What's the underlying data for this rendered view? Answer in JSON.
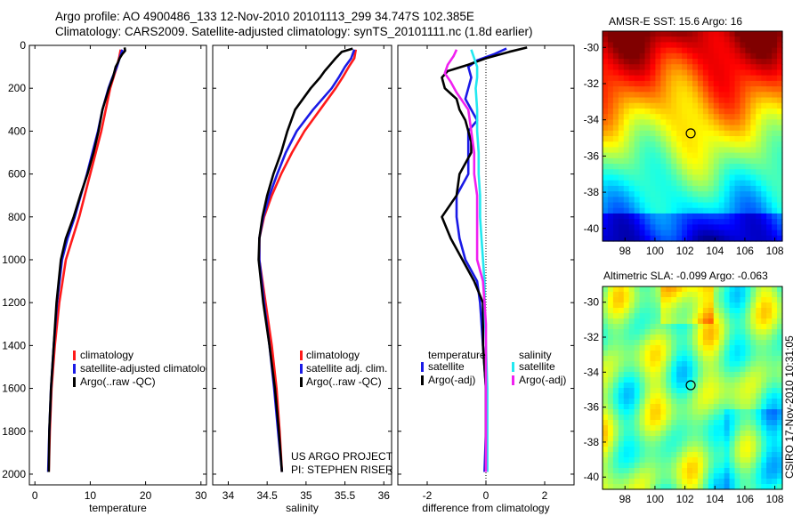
{
  "header": {
    "line1": "Argo profile: AO 4900486_133 12-Nov-2010 20101113_299 34.747S 102.385E",
    "line2": "Climatology: CARS2009. Satellite-adjusted climatology: synTS_20101111.nc (1.8d earlier)"
  },
  "side_label": "CSIRO 17-Nov-2010 10:31:05",
  "colors": {
    "red": "#ff1a1a",
    "blue": "#1a1ae6",
    "black": "#000000",
    "cyan": "#22e8f0",
    "magenta": "#f020f0"
  },
  "chart_data": [
    {
      "type": "line",
      "xlabel": "temperature",
      "xlim": [
        -1,
        31
      ],
      "ylim": [
        0,
        2050
      ],
      "y_reversed": true,
      "xticks": [
        "0",
        "10",
        "20",
        "30"
      ],
      "yticks": [
        "0",
        "200",
        "400",
        "600",
        "800",
        "1000",
        "1200",
        "1400",
        "1600",
        "1800",
        "2000"
      ],
      "legend": [
        "climatology",
        "satellite-adjusted climatology",
        "Argo(..raw -QC)"
      ],
      "series": [
        {
          "name": "climatology",
          "color": "red",
          "depth": [
            20,
            60,
            100,
            150,
            200,
            300,
            400,
            500,
            600,
            700,
            800,
            900,
            1000,
            1200,
            1400,
            1600,
            1800,
            1990
          ],
          "values": [
            15.5,
            15.2,
            14.8,
            14.2,
            13.6,
            12.8,
            12.0,
            11.0,
            10.0,
            9.0,
            8.0,
            6.8,
            5.6,
            4.4,
            3.6,
            3.0,
            2.7,
            2.5
          ]
        },
        {
          "name": "satellite-adjusted climatology",
          "color": "blue",
          "depth": [
            20,
            60,
            100,
            150,
            200,
            300,
            400,
            500,
            600,
            700,
            800,
            900,
            1000,
            1200,
            1400,
            1600,
            1800,
            1990
          ],
          "values": [
            15.8,
            15.3,
            14.8,
            14.0,
            13.3,
            12.2,
            11.4,
            10.4,
            9.4,
            8.3,
            7.2,
            5.9,
            4.9,
            4.0,
            3.4,
            2.9,
            2.6,
            2.4
          ]
        },
        {
          "name": "Argo(..raw -QC)",
          "color": "black",
          "depth": [
            10,
            25,
            40,
            60,
            80,
            100,
            150,
            200,
            250,
            300,
            400,
            500,
            600,
            700,
            800,
            900,
            1000,
            1200,
            1400,
            1600,
            1800,
            1990
          ],
          "values": [
            16.2,
            16.3,
            15.8,
            15.3,
            15.0,
            14.6,
            14.1,
            13.4,
            12.8,
            12.2,
            11.5,
            10.6,
            9.5,
            8.2,
            7.0,
            5.6,
            4.7,
            3.9,
            3.4,
            2.9,
            2.6,
            2.5
          ]
        }
      ]
    },
    {
      "type": "line",
      "xlabel": "salinity",
      "xlim": [
        33.8,
        36.1
      ],
      "ylim": [
        0,
        2050
      ],
      "y_reversed": true,
      "xticks": [
        "34",
        "34.5",
        "35",
        "35.5",
        "36"
      ],
      "legend": [
        "climatology",
        "satellite adj. clim.",
        "Argo(..raw -QC)"
      ],
      "annotation_line1": "US ARGO PROJECT",
      "annotation_line2": "PI: STEPHEN RISER",
      "series": [
        {
          "name": "climatology",
          "color": "red",
          "depth": [
            20,
            60,
            100,
            150,
            200,
            300,
            400,
            500,
            600,
            700,
            800,
            900,
            1000,
            1100,
            1200,
            1400,
            1600,
            1800,
            1990
          ],
          "values": [
            35.64,
            35.62,
            35.55,
            35.47,
            35.38,
            35.18,
            34.98,
            34.82,
            34.68,
            34.56,
            34.46,
            34.4,
            34.4,
            34.44,
            34.48,
            34.56,
            34.62,
            34.66,
            34.69
          ]
        },
        {
          "name": "satellite adj. clim.",
          "color": "blue",
          "depth": [
            20,
            60,
            100,
            150,
            200,
            300,
            400,
            500,
            600,
            700,
            800,
            900,
            1000,
            1100,
            1200,
            1400,
            1600,
            1800,
            1990
          ],
          "values": [
            35.62,
            35.58,
            35.5,
            35.42,
            35.33,
            35.09,
            34.88,
            34.74,
            34.63,
            34.53,
            34.45,
            34.4,
            34.4,
            34.43,
            34.46,
            34.53,
            34.59,
            34.64,
            34.69
          ]
        },
        {
          "name": "Argo(..raw -QC)",
          "color": "black",
          "depth": [
            15,
            30,
            60,
            90,
            120,
            150,
            200,
            250,
            300,
            400,
            500,
            600,
            700,
            800,
            900,
            1000,
            1200,
            1400,
            1600,
            1800,
            1990
          ],
          "values": [
            35.6,
            35.46,
            35.38,
            35.31,
            35.24,
            35.18,
            35.06,
            34.96,
            34.86,
            34.76,
            34.68,
            34.58,
            34.5,
            34.44,
            34.4,
            34.39,
            34.45,
            34.53,
            34.6,
            34.65,
            34.69
          ]
        }
      ]
    },
    {
      "type": "line",
      "xlabel": "difference from climatology",
      "xlim": [
        -3,
        3
      ],
      "ylim": [
        0,
        2050
      ],
      "y_reversed": true,
      "xticks": [
        "-2",
        "0",
        "2"
      ],
      "legend_temperature_title": "temperature",
      "legend_salinity_title": "salinity",
      "legend": [
        "satellite",
        "Argo(-adj)",
        "satellite",
        "Argo(-adj)"
      ],
      "series": [
        {
          "name": "temperature satellite",
          "color": "blue",
          "depth": [
            15,
            40,
            70,
            100,
            150,
            200,
            250,
            300,
            350,
            400,
            500,
            600,
            700,
            800,
            900,
            1000,
            1100,
            1200,
            1400,
            1600,
            1800,
            1990
          ],
          "values": [
            0.7,
            0.3,
            -0.3,
            -0.6,
            -0.5,
            -0.6,
            -0.7,
            -0.5,
            -0.3,
            -0.6,
            -0.6,
            -0.6,
            -1.0,
            -1.0,
            -0.9,
            -0.7,
            -0.3,
            -0.2,
            -0.1,
            0.0,
            0.0,
            -0.05
          ]
        },
        {
          "name": "temperature Argo(-adj)",
          "color": "black",
          "depth": [
            10,
            30,
            60,
            90,
            120,
            150,
            200,
            250,
            300,
            350,
            400,
            450,
            500,
            600,
            700,
            800,
            900,
            1000,
            1100,
            1200,
            1400,
            1600,
            1800,
            1990
          ],
          "values": [
            1.4,
            0.8,
            0.0,
            -0.6,
            -1.3,
            -1.5,
            -1.4,
            -1.0,
            -0.9,
            -0.7,
            -0.6,
            -0.5,
            -0.5,
            -0.9,
            -1.0,
            -1.5,
            -1.2,
            -0.8,
            -0.4,
            -0.1,
            -0.1,
            0.0,
            0.0,
            0.0
          ]
        },
        {
          "name": "salinity satellite",
          "color": "cyan",
          "depth": [
            20,
            60,
            100,
            150,
            200,
            300,
            400,
            500,
            600,
            700,
            800,
            900,
            1000,
            1100,
            1200,
            1400,
            1600,
            1800,
            1990
          ],
          "values": [
            -0.5,
            -0.4,
            -0.3,
            -0.3,
            -0.35,
            -0.3,
            -0.3,
            -0.25,
            -0.25,
            -0.2,
            -0.2,
            -0.15,
            -0.1,
            -0.05,
            -0.05,
            0.0,
            0.05,
            0.05,
            0.05
          ]
        },
        {
          "name": "salinity Argo(-adj)",
          "color": "magenta",
          "depth": [
            20,
            50,
            90,
            130,
            170,
            220,
            300,
            400,
            500,
            600,
            700,
            800,
            900,
            1000,
            1100,
            1200,
            1300,
            1400,
            1600,
            1800,
            1990
          ],
          "values": [
            -1.0,
            -1.1,
            -1.3,
            -1.4,
            -1.2,
            -1.0,
            -0.6,
            -0.5,
            -0.4,
            -0.4,
            -0.3,
            -0.3,
            -0.3,
            -0.3,
            -0.1,
            -0.05,
            0.0,
            0.0,
            0.0,
            0.0,
            0.0
          ]
        }
      ]
    },
    {
      "type": "heatmap",
      "title": "AMSR-E SST: 15.6 Argo: 16",
      "xticks": [
        "98",
        "100",
        "102",
        "104",
        "106",
        "108"
      ],
      "yticks": [
        "-30",
        "-32",
        "-34",
        "-36",
        "-38",
        "-40"
      ],
      "xlim": [
        96.5,
        108.5
      ],
      "ylim": [
        -40.7,
        -29.1
      ],
      "marker": {
        "lon": 102.385,
        "lat": -34.747
      },
      "colormap": "jet",
      "description_values": "SST decreasing from north (~20) to south (~13)"
    },
    {
      "type": "heatmap",
      "title": "Altimetric SLA: -0.099 Argo: -0.063",
      "xticks": [
        "98",
        "100",
        "102",
        "104",
        "106",
        "108"
      ],
      "yticks": [
        "-30",
        "-32",
        "-34",
        "-36",
        "-38",
        "-40"
      ],
      "xlim": [
        96.5,
        108.5
      ],
      "ylim": [
        -40.7,
        -29.1
      ],
      "marker": {
        "lon": 102.385,
        "lat": -34.747
      },
      "colormap": "jet"
    }
  ]
}
